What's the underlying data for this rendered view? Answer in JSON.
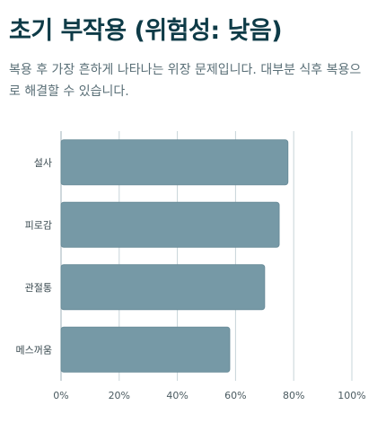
{
  "title": "초기 부작용 (위험성: 낮음)",
  "subtitle": "복용 후 가장 흔하게 나타나는 위장 문제입니다. 대부분 식후 복용으로 해결할 수 있습니다.",
  "colors": {
    "bar": "#7699a6",
    "title": "#0e3b47",
    "grid": "#c7d4d8"
  },
  "chart_data": {
    "type": "bar",
    "orientation": "horizontal",
    "categories": [
      "설사",
      "피로감",
      "관절통",
      "메스꺼움"
    ],
    "values": [
      78,
      75,
      70,
      58
    ],
    "xlim": [
      0,
      100
    ],
    "xticks": [
      "0%",
      "20%",
      "40%",
      "60%",
      "80%",
      "100%"
    ],
    "grid": true
  }
}
